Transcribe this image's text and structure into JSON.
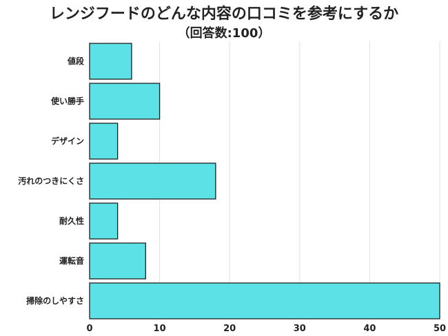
{
  "title": "レンジフードのどんな内容の口コミを参考にするか",
  "subtitle": "（回答数:100）",
  "chart_data": {
    "type": "bar",
    "orientation": "horizontal",
    "categories": [
      "値段",
      "使い勝手",
      "デザイン",
      "汚れのつきにくさ",
      "耐久性",
      "運転音",
      "掃除のしやすさ"
    ],
    "values": [
      6,
      10,
      4,
      18,
      4,
      8,
      50
    ],
    "x_ticks": [
      "0",
      "10",
      "20",
      "30",
      "40",
      "50"
    ],
    "xlim": [
      0,
      50
    ],
    "grid": true,
    "bar_color": "#5ce1e6"
  }
}
